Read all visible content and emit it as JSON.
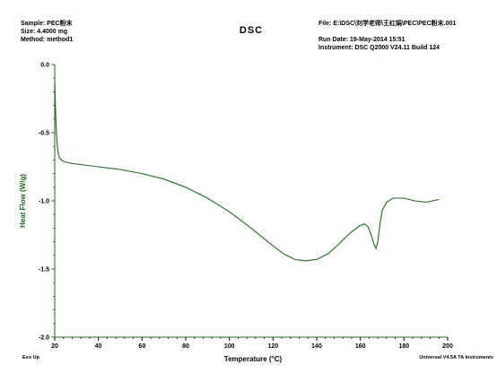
{
  "header": {
    "sample": "Sample: PEC粉末",
    "size": "Size:  4.4000 mg",
    "method": "Method: method1",
    "file": "File: E:\\DSC\\刘学老师\\王红娟\\PEC\\PEC粉末.001",
    "run_date": "Run Date: 19-May-2014 15:51",
    "instrument": "Instrument: DSC Q2000 V24.11  Build 124"
  },
  "footer": {
    "exo": "Exo Up",
    "software": "Universal V4.5A TA Instruments"
  },
  "colors": {
    "curve": "#1a6b1a",
    "axis": "#1a6b1a"
  },
  "chart_data": {
    "type": "line",
    "title": "DSC",
    "xlabel": "Temperature (°C)",
    "ylabel": "Heat Flow (W/g)",
    "xlim": [
      20,
      200
    ],
    "ylim": [
      -2.0,
      0.0
    ],
    "xticks": [
      20,
      40,
      60,
      80,
      100,
      120,
      140,
      160,
      180,
      200
    ],
    "yticks": [
      0.0,
      -0.5,
      -1.0,
      -1.5,
      -2.0
    ],
    "ytick_labels": [
      "0.0",
      "-0.5",
      "-1.0",
      "-1.5",
      "-2.0"
    ],
    "grid": false,
    "series": [
      {
        "x": [
          20.0,
          20.4,
          20.8,
          21.2,
          21.6,
          22,
          23,
          24,
          26,
          30,
          35,
          40,
          50,
          60,
          70,
          80,
          90,
          100,
          110,
          120,
          125,
          130,
          135,
          140,
          145,
          150,
          155,
          160,
          162,
          163.5,
          165,
          166.5,
          167.2,
          168,
          169,
          170,
          172,
          175,
          180,
          185,
          190,
          193,
          196
        ],
        "y": [
          -0.12,
          -0.35,
          -0.5,
          -0.6,
          -0.65,
          -0.68,
          -0.7,
          -0.71,
          -0.72,
          -0.73,
          -0.74,
          -0.75,
          -0.77,
          -0.8,
          -0.84,
          -0.9,
          -0.98,
          -1.08,
          -1.2,
          -1.33,
          -1.39,
          -1.43,
          -1.44,
          -1.43,
          -1.39,
          -1.32,
          -1.24,
          -1.18,
          -1.17,
          -1.19,
          -1.25,
          -1.33,
          -1.35,
          -1.3,
          -1.17,
          -1.07,
          -1.01,
          -0.98,
          -0.98,
          -1.0,
          -1.01,
          -1.0,
          -0.99
        ]
      }
    ]
  }
}
